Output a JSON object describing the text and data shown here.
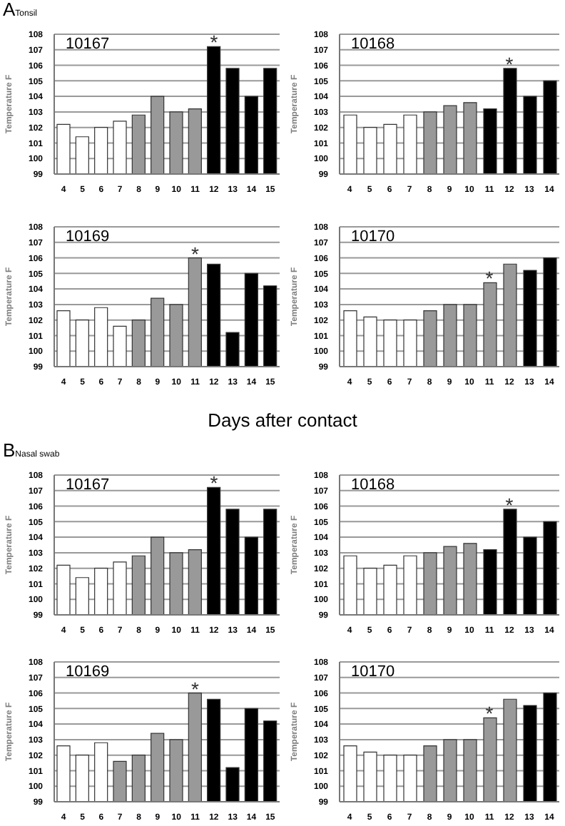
{
  "chart_data": [
    {
      "type": "bar",
      "title": "10167",
      "ylabel": "Temperature F",
      "annotations": [
        "A",
        "Tonsil",
        {
          "text": "*",
          "x": "12",
          "y": 107.2
        }
      ],
      "categories": [
        "4",
        "5",
        "6",
        "7",
        "8",
        "9",
        "10",
        "11",
        "12",
        "13",
        "14",
        "15"
      ],
      "values": [
        102.2,
        101.4,
        102.0,
        102.4,
        102.8,
        104.0,
        103.0,
        103.2,
        107.2,
        105.8,
        104.0,
        105.8
      ],
      "colors": [
        "#ffffff",
        "#ffffff",
        "#ffffff",
        "#ffffff",
        "#999999",
        "#999999",
        "#999999",
        "#999999",
        "#000000",
        "#000000",
        "#000000",
        "#000000"
      ],
      "ylim": [
        99,
        108
      ],
      "yticks": [
        99,
        100,
        101,
        102,
        103,
        104,
        105,
        106,
        107,
        108
      ],
      "grid": "y"
    },
    {
      "type": "bar",
      "title": "10168",
      "ylabel": "Temperature F",
      "annotations": [
        {
          "text": "*",
          "x": "12",
          "y": 105.8
        }
      ],
      "categories": [
        "4",
        "5",
        "6",
        "7",
        "8",
        "9",
        "10",
        "11",
        "12",
        "13",
        "14"
      ],
      "values": [
        102.8,
        102.0,
        102.2,
        102.8,
        103.0,
        103.4,
        103.6,
        103.2,
        105.8,
        104.0,
        105.0
      ],
      "colors": [
        "#ffffff",
        "#ffffff",
        "#ffffff",
        "#ffffff",
        "#999999",
        "#999999",
        "#999999",
        "#000000",
        "#000000",
        "#000000",
        "#000000"
      ],
      "ylim": [
        99,
        108
      ],
      "yticks": [
        99,
        100,
        101,
        102,
        103,
        104,
        105,
        106,
        107,
        108
      ],
      "grid": "y"
    },
    {
      "type": "bar",
      "title": "10169",
      "ylabel": "Temperature F",
      "annotations": [
        "Days after contact",
        {
          "text": "*",
          "x": "11",
          "y": 106.0
        }
      ],
      "categories": [
        "4",
        "5",
        "6",
        "7",
        "8",
        "9",
        "10",
        "11",
        "12",
        "13",
        "14",
        "15"
      ],
      "values": [
        102.6,
        102.0,
        102.8,
        101.6,
        102.0,
        103.4,
        103.0,
        106.0,
        105.6,
        101.2,
        105.0,
        104.2
      ],
      "colors": [
        "#ffffff",
        "#ffffff",
        "#ffffff",
        "#ffffff",
        "#999999",
        "#999999",
        "#999999",
        "#999999",
        "#000000",
        "#000000",
        "#000000",
        "#000000"
      ],
      "ylim": [
        99,
        108
      ],
      "yticks": [
        99,
        100,
        101,
        102,
        103,
        104,
        105,
        106,
        107,
        108
      ],
      "grid": "y"
    },
    {
      "type": "bar",
      "title": "10170",
      "ylabel": "Temperature F",
      "annotations": [
        {
          "text": "*",
          "x": "11",
          "y": 104.4
        }
      ],
      "categories": [
        "4",
        "5",
        "6",
        "7",
        "8",
        "9",
        "10",
        "11",
        "12",
        "13",
        "14"
      ],
      "values": [
        102.6,
        102.2,
        102.0,
        102.0,
        102.6,
        103.0,
        103.0,
        104.4,
        105.6,
        105.2,
        106.0
      ],
      "colors": [
        "#ffffff",
        "#ffffff",
        "#ffffff",
        "#ffffff",
        "#999999",
        "#999999",
        "#999999",
        "#999999",
        "#999999",
        "#000000",
        "#000000"
      ],
      "ylim": [
        99,
        108
      ],
      "yticks": [
        99,
        100,
        101,
        102,
        103,
        104,
        105,
        106,
        107,
        108
      ],
      "grid": "y"
    },
    {
      "type": "bar",
      "title": "10167",
      "ylabel": "Temperature F",
      "annotations": [
        "B",
        "Nasal swab",
        {
          "text": "*",
          "x": "12",
          "y": 107.2
        }
      ],
      "categories": [
        "4",
        "5",
        "6",
        "7",
        "8",
        "9",
        "10",
        "11",
        "12",
        "13",
        "14",
        "15"
      ],
      "values": [
        102.2,
        101.4,
        102.0,
        102.4,
        102.8,
        104.0,
        103.0,
        103.2,
        107.2,
        105.8,
        104.0,
        105.8
      ],
      "colors": [
        "#ffffff",
        "#ffffff",
        "#ffffff",
        "#ffffff",
        "#999999",
        "#999999",
        "#999999",
        "#999999",
        "#000000",
        "#000000",
        "#000000",
        "#000000"
      ],
      "ylim": [
        99,
        108
      ],
      "yticks": [
        99,
        100,
        101,
        102,
        103,
        104,
        105,
        106,
        107,
        108
      ],
      "grid": "y"
    },
    {
      "type": "bar",
      "title": "10168",
      "ylabel": "Temperature F",
      "annotations": [
        {
          "text": "*",
          "x": "12",
          "y": 105.8
        }
      ],
      "categories": [
        "4",
        "5",
        "6",
        "7",
        "8",
        "9",
        "10",
        "11",
        "12",
        "13",
        "14"
      ],
      "values": [
        102.8,
        102.0,
        102.2,
        102.8,
        103.0,
        103.4,
        103.6,
        103.2,
        105.8,
        104.0,
        105.0
      ],
      "colors": [
        "#ffffff",
        "#ffffff",
        "#ffffff",
        "#ffffff",
        "#999999",
        "#999999",
        "#999999",
        "#000000",
        "#000000",
        "#000000",
        "#000000"
      ],
      "ylim": [
        99,
        108
      ],
      "yticks": [
        99,
        100,
        101,
        102,
        103,
        104,
        105,
        106,
        107,
        108
      ],
      "grid": "y"
    },
    {
      "type": "bar",
      "title": "10169",
      "ylabel": "Temperature F",
      "annotations": [
        {
          "text": "*",
          "x": "11",
          "y": 106.0
        }
      ],
      "categories": [
        "4",
        "5",
        "6",
        "7",
        "8",
        "9",
        "10",
        "11",
        "12",
        "13",
        "14",
        "15"
      ],
      "values": [
        102.6,
        102.0,
        102.8,
        101.6,
        102.0,
        103.4,
        103.0,
        106.0,
        105.6,
        101.2,
        105.0,
        104.2
      ],
      "colors": [
        "#ffffff",
        "#ffffff",
        "#ffffff",
        "#999999",
        "#999999",
        "#999999",
        "#999999",
        "#999999",
        "#000000",
        "#000000",
        "#000000",
        "#000000"
      ],
      "ylim": [
        99,
        108
      ],
      "yticks": [
        99,
        100,
        101,
        102,
        103,
        104,
        105,
        106,
        107,
        108
      ],
      "grid": "y"
    },
    {
      "type": "bar",
      "title": "10170",
      "ylabel": "Temperature F",
      "annotations": [
        {
          "text": "*",
          "x": "11",
          "y": 104.4
        }
      ],
      "categories": [
        "4",
        "5",
        "6",
        "7",
        "8",
        "9",
        "10",
        "11",
        "12",
        "13",
        "14"
      ],
      "values": [
        102.6,
        102.2,
        102.0,
        102.0,
        102.6,
        103.0,
        103.0,
        104.4,
        105.6,
        105.2,
        106.0
      ],
      "colors": [
        "#ffffff",
        "#ffffff",
        "#ffffff",
        "#ffffff",
        "#999999",
        "#999999",
        "#999999",
        "#999999",
        "#999999",
        "#000000",
        "#000000"
      ],
      "ylim": [
        99,
        108
      ],
      "yticks": [
        99,
        100,
        101,
        102,
        103,
        104,
        105,
        106,
        107,
        108
      ],
      "grid": "y"
    }
  ]
}
